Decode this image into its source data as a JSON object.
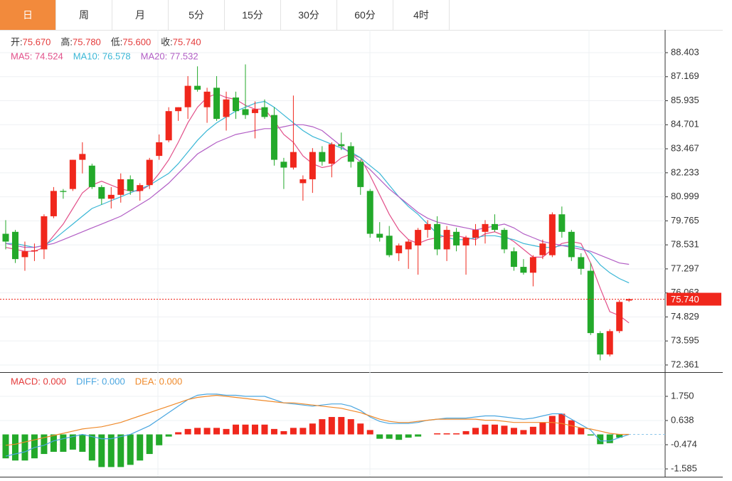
{
  "tabs": [
    "日",
    "周",
    "月",
    "5分",
    "15分",
    "30分",
    "60分",
    "4时"
  ],
  "active_tab": 0,
  "info": [
    {
      "label": "开:",
      "value": "75.670"
    },
    {
      "label": "高:",
      "value": "75.780"
    },
    {
      "label": "低:",
      "value": "75.600"
    },
    {
      "label": "收:",
      "value": "75.740"
    }
  ],
  "chart_data": [
    {
      "type": "candlestick",
      "up_color": "#f0271c",
      "down_color": "#23a92a",
      "open": [
        79.1,
        79.2,
        77.9,
        78.2,
        78.3,
        80.0,
        81.3,
        81.4,
        82.9,
        82.6,
        81.5,
        80.9,
        81.1,
        81.9,
        81.3,
        81.6,
        83.1,
        83.9,
        85.4,
        85.6,
        86.7,
        85.6,
        86.6,
        85.1,
        86.1,
        85.5,
        85.3,
        85.6,
        85.2,
        82.8,
        82.5,
        81.7,
        81.9,
        83.3,
        82.7,
        83.7,
        83.6,
        82.8,
        81.3,
        79.1,
        79.0,
        78.1,
        78.3,
        78.5,
        79.3,
        79.6,
        78.3,
        79.2,
        78.5,
        78.9,
        79.2,
        79.6,
        79.3,
        78.2,
        77.4,
        77.1,
        78.0,
        78.0,
        80.1,
        79.2,
        77.9,
        77.2,
        74.0,
        72.9,
        74.1,
        75.67
      ],
      "high": [
        79.8,
        79.3,
        78.7,
        78.6,
        80.1,
        81.5,
        81.4,
        82.9,
        83.8,
        82.7,
        81.6,
        81.5,
        82.2,
        82.1,
        81.7,
        83.0,
        84.2,
        85.6,
        85.6,
        87.2,
        87.7,
        86.6,
        87.2,
        86.4,
        86.4,
        87.8,
        85.9,
        86.0,
        85.6,
        83.0,
        86.2,
        82.1,
        83.5,
        83.6,
        83.8,
        84.3,
        83.8,
        82.9,
        81.4,
        79.7,
        79.5,
        78.6,
        78.8,
        79.4,
        79.8,
        80.0,
        79.5,
        79.4,
        79.0,
        79.6,
        79.8,
        80.1,
        79.4,
        78.4,
        77.8,
        78.0,
        78.8,
        80.2,
        80.5,
        79.3,
        78.1,
        77.6,
        74.1,
        74.2,
        75.7,
        75.78
      ],
      "low": [
        78.3,
        77.6,
        77.2,
        77.7,
        77.8,
        79.9,
        80.9,
        81.3,
        82.2,
        81.4,
        80.6,
        80.4,
        80.7,
        81.1,
        80.8,
        81.4,
        82.9,
        83.8,
        84.9,
        85.0,
        86.4,
        84.8,
        84.9,
        84.4,
        85.0,
        85.0,
        84.0,
        85.0,
        82.6,
        81.4,
        82.4,
        80.8,
        81.2,
        82.6,
        82.0,
        83.4,
        82.5,
        81.1,
        78.9,
        78.7,
        77.9,
        77.7,
        77.3,
        77.0,
        78.9,
        78.0,
        77.7,
        78.2,
        77.0,
        78.5,
        78.6,
        79.2,
        78.1,
        77.2,
        77.0,
        76.4,
        77.8,
        77.9,
        78.9,
        77.7,
        77.0,
        73.9,
        72.6,
        72.8,
        74.0,
        75.6
      ],
      "close": [
        78.7,
        77.8,
        78.2,
        78.25,
        80.0,
        81.3,
        81.25,
        82.9,
        83.2,
        81.5,
        80.9,
        81.1,
        81.9,
        81.3,
        81.6,
        82.9,
        83.8,
        85.4,
        85.6,
        86.7,
        86.5,
        86.4,
        85.0,
        86.0,
        85.4,
        85.2,
        85.5,
        85.1,
        82.9,
        82.5,
        83.3,
        81.9,
        83.3,
        82.8,
        83.7,
        83.6,
        82.8,
        81.5,
        79.1,
        78.9,
        78.0,
        78.5,
        78.7,
        79.3,
        79.6,
        78.3,
        79.3,
        78.5,
        78.9,
        79.3,
        79.6,
        79.3,
        78.3,
        77.4,
        77.1,
        77.9,
        78.6,
        80.1,
        79.2,
        77.9,
        77.3,
        74.0,
        72.9,
        74.1,
        75.6,
        75.74
      ],
      "series": [
        {
          "name": "MA5",
          "legend": "MA5: 74.524",
          "color": "#e2508a",
          "values": [
            78.4,
            78.3,
            78.2,
            78.2,
            78.4,
            79.0,
            79.6,
            80.4,
            81.2,
            81.6,
            81.8,
            81.6,
            81.4,
            81.3,
            81.3,
            81.6,
            82.2,
            82.9,
            83.8,
            84.8,
            85.6,
            86.1,
            86.3,
            86.1,
            86.0,
            85.7,
            85.5,
            85.5,
            84.9,
            84.2,
            83.8,
            83.1,
            82.7,
            82.5,
            82.6,
            83.0,
            83.2,
            83.0,
            82.1,
            81.1,
            80.1,
            79.3,
            78.8,
            78.6,
            78.8,
            78.9,
            79.0,
            79.0,
            78.9,
            78.8,
            79.1,
            79.2,
            79.0,
            78.7,
            78.3,
            77.9,
            77.9,
            78.3,
            78.6,
            78.7,
            78.6,
            77.6,
            76.3,
            75.1,
            74.9,
            74.524
          ]
        },
        {
          "name": "MA10",
          "legend": "MA10: 76.578",
          "color": "#3ab7d6",
          "values": [
            78.6,
            78.6,
            78.5,
            78.4,
            78.5,
            78.8,
            79.2,
            79.6,
            80.0,
            80.4,
            80.6,
            80.8,
            81.0,
            81.2,
            81.4,
            81.6,
            81.9,
            82.2,
            82.7,
            83.3,
            83.9,
            84.4,
            84.8,
            85.1,
            85.4,
            85.6,
            85.8,
            85.9,
            85.6,
            85.2,
            84.8,
            84.4,
            84.1,
            83.9,
            83.7,
            83.5,
            83.3,
            83.0,
            82.6,
            82.2,
            81.6,
            81.0,
            80.5,
            80.1,
            79.6,
            79.1,
            78.9,
            78.8,
            78.8,
            78.9,
            79.0,
            79.0,
            78.9,
            78.8,
            78.6,
            78.5,
            78.4,
            78.4,
            78.5,
            78.5,
            78.4,
            78.1,
            77.5,
            77.1,
            76.8,
            76.578
          ]
        },
        {
          "name": "MA20",
          "legend": "MA20: 77.532",
          "color": "#b25ec5",
          "values": [
            78.6,
            78.5,
            78.4,
            78.4,
            78.5,
            78.6,
            78.8,
            79.0,
            79.2,
            79.4,
            79.6,
            79.8,
            80.0,
            80.3,
            80.6,
            80.9,
            81.3,
            81.7,
            82.2,
            82.7,
            83.2,
            83.5,
            83.8,
            84.0,
            84.2,
            84.3,
            84.4,
            84.5,
            84.5,
            84.6,
            84.7,
            84.7,
            84.6,
            84.4,
            84.0,
            83.6,
            83.2,
            82.8,
            82.4,
            81.9,
            81.4,
            81.0,
            80.6,
            80.2,
            79.9,
            79.7,
            79.6,
            79.5,
            79.4,
            79.3,
            79.4,
            79.5,
            79.6,
            79.4,
            79.1,
            78.9,
            78.7,
            78.6,
            78.5,
            78.4,
            78.3,
            78.2,
            78.0,
            77.8,
            77.6,
            77.532
          ]
        }
      ],
      "ylim": [
        72.03,
        89.5
      ],
      "yticks": [
        88.403,
        87.169,
        85.935,
        84.701,
        83.467,
        82.233,
        80.999,
        79.765,
        78.531,
        77.297,
        76.063,
        74.829,
        73.595,
        72.361
      ],
      "last_price": {
        "value": 75.74,
        "label": "75.740"
      },
      "grid": true
    },
    {
      "type": "macd",
      "up_color": "#f0271c",
      "down_color": "#23a92a",
      "series": [
        {
          "name": "MACD",
          "legend": "MACD: 0.000",
          "color": "#e43a3a",
          "kind": "bar",
          "values": [
            -1.1,
            -1.2,
            -1.2,
            -1.1,
            -0.9,
            -0.8,
            -0.8,
            -0.7,
            -0.8,
            -1.2,
            -1.5,
            -1.5,
            -1.5,
            -1.4,
            -1.2,
            -0.9,
            -0.5,
            -0.1,
            0.1,
            0.25,
            0.3,
            0.3,
            0.3,
            0.25,
            0.45,
            0.45,
            0.45,
            0.45,
            0.25,
            0.15,
            0.3,
            0.3,
            0.5,
            0.7,
            0.8,
            0.8,
            0.7,
            0.5,
            0.2,
            -0.2,
            -0.2,
            -0.25,
            -0.15,
            -0.1,
            0.0,
            0.05,
            0.05,
            0.05,
            0.15,
            0.3,
            0.45,
            0.45,
            0.4,
            0.3,
            0.2,
            0.35,
            0.55,
            0.85,
            0.95,
            0.65,
            0.3,
            -0.05,
            -0.45,
            -0.4,
            -0.15,
            0.0
          ]
        },
        {
          "name": "DIFF",
          "legend": "DIFF: 0.000",
          "color": "#4aa6e0",
          "kind": "line",
          "values": [
            -1.0,
            -0.9,
            -0.8,
            -0.6,
            -0.5,
            -0.3,
            -0.2,
            -0.1,
            0.0,
            -0.1,
            -0.2,
            -0.2,
            -0.1,
            0.0,
            0.2,
            0.4,
            0.7,
            1.0,
            1.3,
            1.6,
            1.8,
            1.85,
            1.85,
            1.8,
            1.8,
            1.75,
            1.75,
            1.75,
            1.6,
            1.45,
            1.4,
            1.35,
            1.3,
            1.35,
            1.4,
            1.4,
            1.3,
            1.1,
            0.8,
            0.6,
            0.5,
            0.5,
            0.5,
            0.55,
            0.65,
            0.7,
            0.75,
            0.75,
            0.75,
            0.8,
            0.85,
            0.85,
            0.8,
            0.75,
            0.7,
            0.75,
            0.85,
            0.95,
            0.95,
            0.7,
            0.45,
            0.2,
            -0.3,
            -0.3,
            -0.15,
            0.0
          ]
        },
        {
          "name": "DEA",
          "legend": "DEA: 0.000",
          "color": "#ef8a2b",
          "kind": "line",
          "values": [
            -0.5,
            -0.45,
            -0.35,
            -0.25,
            -0.15,
            -0.05,
            0.05,
            0.15,
            0.25,
            0.3,
            0.35,
            0.45,
            0.55,
            0.7,
            0.85,
            1.0,
            1.15,
            1.3,
            1.45,
            1.6,
            1.7,
            1.75,
            1.8,
            1.75,
            1.7,
            1.65,
            1.6,
            1.55,
            1.5,
            1.45,
            1.45,
            1.4,
            1.35,
            1.3,
            1.25,
            1.2,
            1.1,
            1.0,
            0.85,
            0.7,
            0.6,
            0.55,
            0.55,
            0.6,
            0.65,
            0.7,
            0.7,
            0.7,
            0.7,
            0.7,
            0.65,
            0.65,
            0.6,
            0.55,
            0.55,
            0.55,
            0.55,
            0.55,
            0.5,
            0.4,
            0.3,
            0.25,
            0.15,
            0.05,
            0.0,
            0.0
          ]
        }
      ],
      "ylim": [
        -1.945,
        2.796
      ],
      "yticks": [
        {
          "value": 1.75,
          "label": "1.750"
        },
        0.638,
        -0.474,
        -1.585
      ],
      "grid": true
    }
  ]
}
